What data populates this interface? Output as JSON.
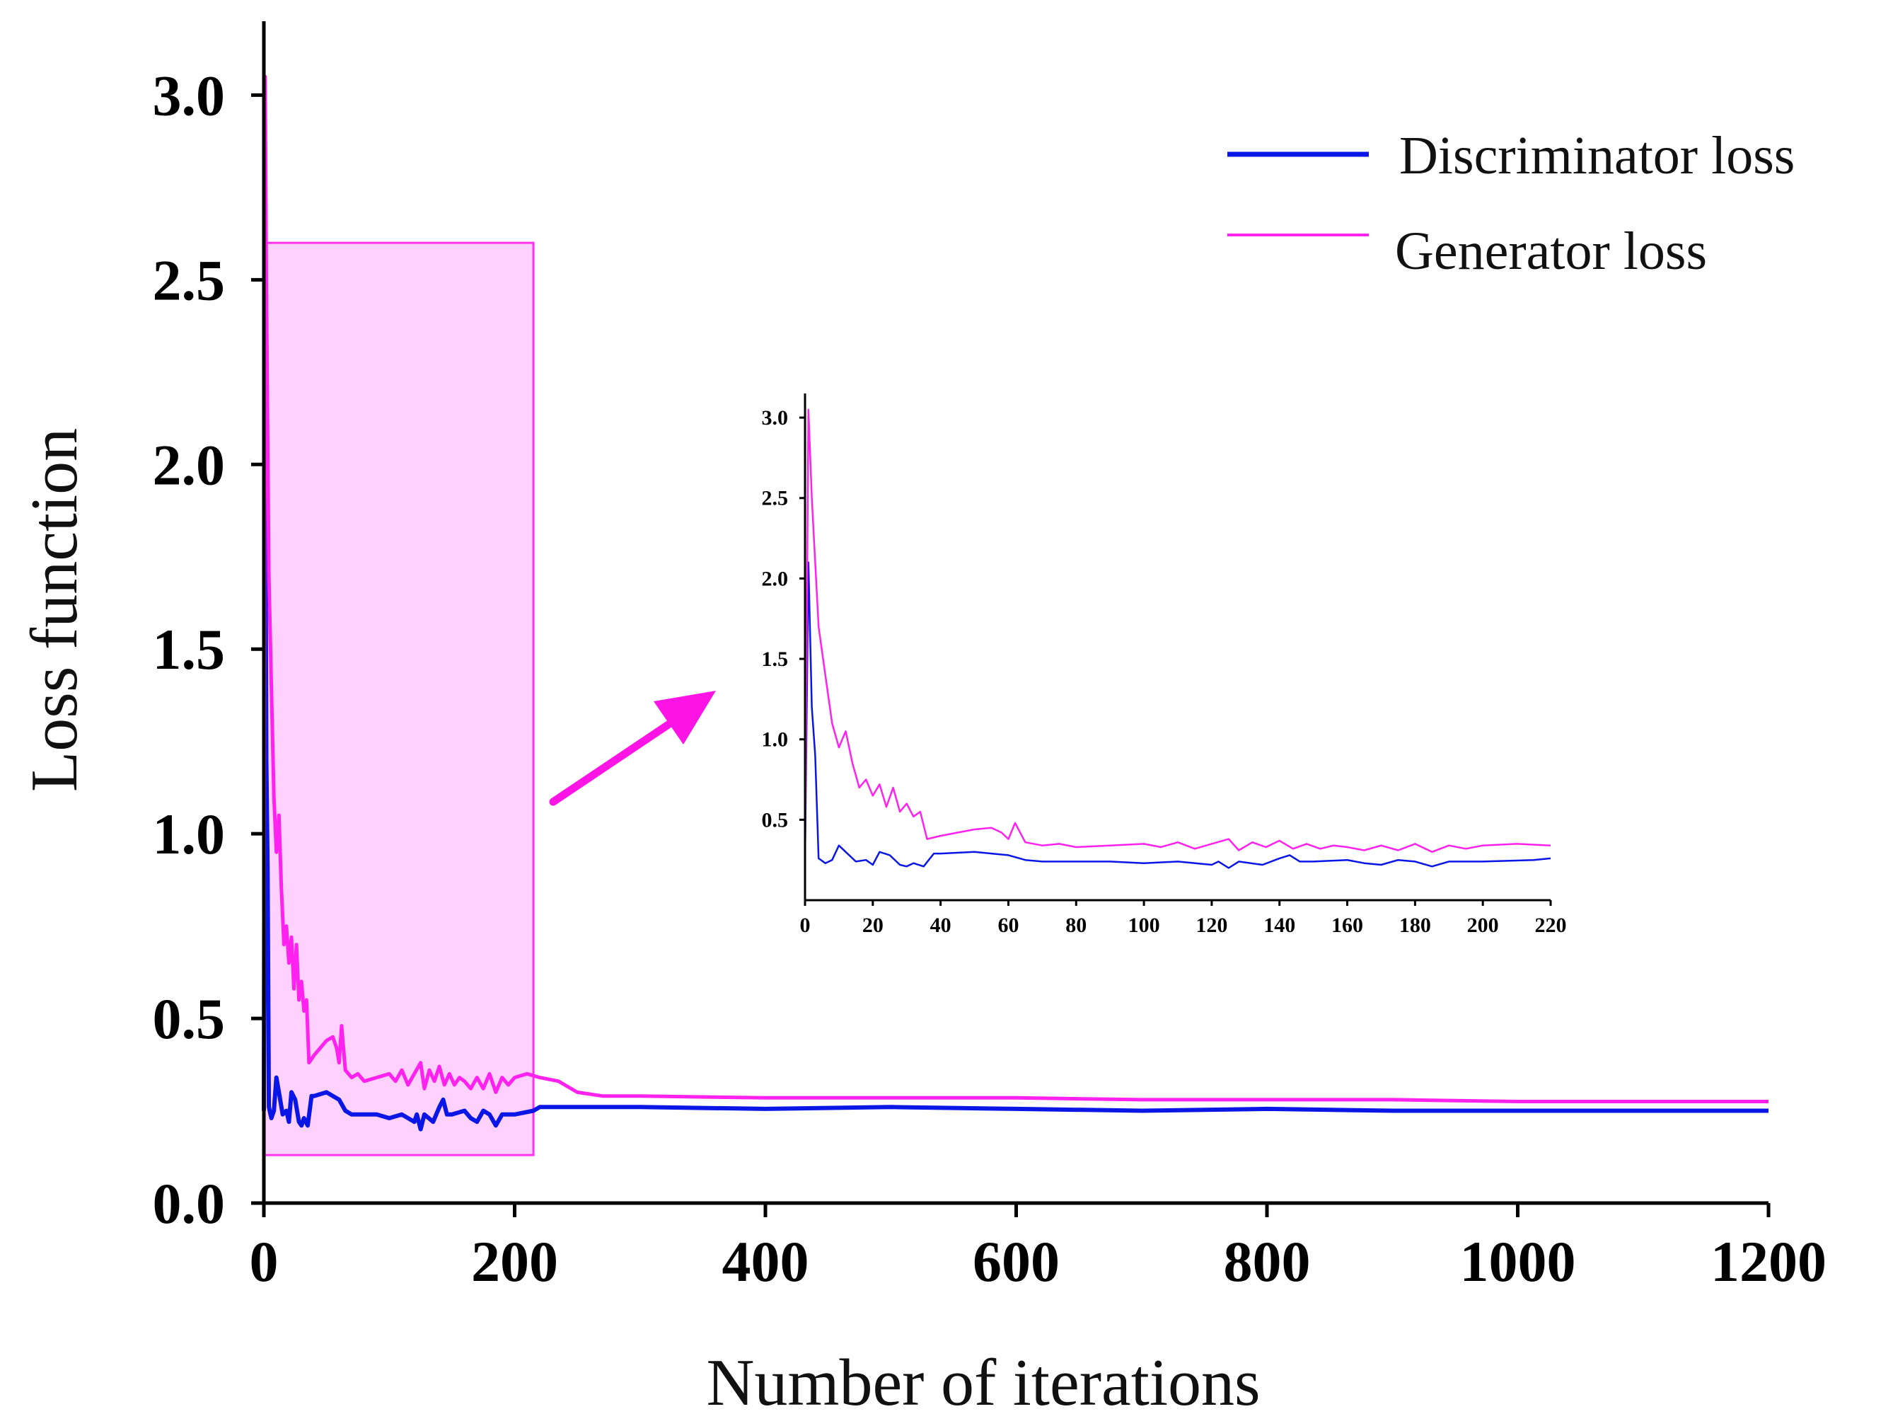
{
  "chart_data": [
    {
      "type": "line",
      "title": "",
      "xlabel": "Number of iterations",
      "ylabel": "Loss function",
      "xlim": [
        0,
        1200
      ],
      "ylim": [
        0,
        3.2
      ],
      "x_ticks": [
        "0",
        "200",
        "400",
        "600",
        "800",
        "1000",
        "1200"
      ],
      "y_ticks": [
        "0.0",
        "0.5",
        "1.0",
        "1.5",
        "2.0",
        "2.5",
        "3.0"
      ],
      "legend_position": "top-right",
      "highlight_region": {
        "x": [
          0,
          215
        ],
        "y": [
          0.13,
          2.6
        ],
        "color": "#ff66ff"
      },
      "series": [
        {
          "name": "Discriminator loss",
          "color": "#0a16e6",
          "points": [
            [
              0,
              0.25
            ],
            [
              1,
              2.1
            ],
            [
              2,
              1.2
            ],
            [
              3,
              0.9
            ],
            [
              4,
              0.26
            ],
            [
              6,
              0.23
            ],
            [
              8,
              0.25
            ],
            [
              10,
              0.34
            ],
            [
              12,
              0.3
            ],
            [
              15,
              0.24
            ],
            [
              18,
              0.25
            ],
            [
              20,
              0.22
            ],
            [
              22,
              0.3
            ],
            [
              25,
              0.28
            ],
            [
              28,
              0.22
            ],
            [
              30,
              0.21
            ],
            [
              32,
              0.23
            ],
            [
              35,
              0.21
            ],
            [
              38,
              0.29
            ],
            [
              40,
              0.29
            ],
            [
              50,
              0.3
            ],
            [
              55,
              0.29
            ],
            [
              60,
              0.28
            ],
            [
              65,
              0.25
            ],
            [
              70,
              0.24
            ],
            [
              80,
              0.24
            ],
            [
              90,
              0.24
            ],
            [
              100,
              0.23
            ],
            [
              110,
              0.24
            ],
            [
              120,
              0.22
            ],
            [
              122,
              0.24
            ],
            [
              125,
              0.2
            ],
            [
              128,
              0.24
            ],
            [
              135,
              0.22
            ],
            [
              140,
              0.26
            ],
            [
              143,
              0.28
            ],
            [
              146,
              0.24
            ],
            [
              150,
              0.24
            ],
            [
              160,
              0.25
            ],
            [
              165,
              0.23
            ],
            [
              170,
              0.22
            ],
            [
              175,
              0.25
            ],
            [
              180,
              0.24
            ],
            [
              185,
              0.21
            ],
            [
              190,
              0.24
            ],
            [
              200,
              0.24
            ],
            [
              215,
              0.25
            ],
            [
              220,
              0.26
            ],
            [
              250,
              0.26
            ],
            [
              300,
              0.26
            ],
            [
              400,
              0.255
            ],
            [
              500,
              0.26
            ],
            [
              600,
              0.255
            ],
            [
              700,
              0.25
            ],
            [
              800,
              0.255
            ],
            [
              900,
              0.25
            ],
            [
              1000,
              0.25
            ],
            [
              1100,
              0.25
            ],
            [
              1200,
              0.25
            ]
          ]
        },
        {
          "name": "Generator loss",
          "color": "#ff22ee",
          "points": [
            [
              0,
              0.25
            ],
            [
              1,
              3.05
            ],
            [
              2,
              2.5
            ],
            [
              3,
              2.1
            ],
            [
              4,
              1.7
            ],
            [
              6,
              1.4
            ],
            [
              8,
              1.1
            ],
            [
              10,
              0.95
            ],
            [
              12,
              1.05
            ],
            [
              14,
              0.85
            ],
            [
              16,
              0.7
            ],
            [
              18,
              0.75
            ],
            [
              20,
              0.65
            ],
            [
              22,
              0.72
            ],
            [
              24,
              0.58
            ],
            [
              26,
              0.7
            ],
            [
              28,
              0.55
            ],
            [
              30,
              0.6
            ],
            [
              32,
              0.52
            ],
            [
              34,
              0.55
            ],
            [
              36,
              0.38
            ],
            [
              40,
              0.4
            ],
            [
              45,
              0.42
            ],
            [
              50,
              0.44
            ],
            [
              55,
              0.45
            ],
            [
              58,
              0.42
            ],
            [
              60,
              0.38
            ],
            [
              62,
              0.48
            ],
            [
              65,
              0.36
            ],
            [
              70,
              0.34
            ],
            [
              75,
              0.35
            ],
            [
              80,
              0.33
            ],
            [
              90,
              0.34
            ],
            [
              100,
              0.35
            ],
            [
              105,
              0.33
            ],
            [
              110,
              0.36
            ],
            [
              115,
              0.32
            ],
            [
              120,
              0.35
            ],
            [
              125,
              0.38
            ],
            [
              128,
              0.31
            ],
            [
              132,
              0.36
            ],
            [
              136,
              0.33
            ],
            [
              140,
              0.37
            ],
            [
              144,
              0.32
            ],
            [
              148,
              0.35
            ],
            [
              152,
              0.32
            ],
            [
              156,
              0.34
            ],
            [
              160,
              0.33
            ],
            [
              165,
              0.31
            ],
            [
              170,
              0.34
            ],
            [
              175,
              0.31
            ],
            [
              180,
              0.35
            ],
            [
              185,
              0.3
            ],
            [
              190,
              0.34
            ],
            [
              195,
              0.32
            ],
            [
              200,
              0.34
            ],
            [
              210,
              0.35
            ],
            [
              220,
              0.34
            ],
            [
              235,
              0.33
            ],
            [
              250,
              0.3
            ],
            [
              270,
              0.29
            ],
            [
              300,
              0.29
            ],
            [
              400,
              0.285
            ],
            [
              500,
              0.285
            ],
            [
              600,
              0.285
            ],
            [
              700,
              0.28
            ],
            [
              800,
              0.28
            ],
            [
              900,
              0.28
            ],
            [
              1000,
              0.275
            ],
            [
              1100,
              0.275
            ],
            [
              1200,
              0.275
            ]
          ]
        }
      ]
    },
    {
      "type": "line",
      "title": "",
      "note": "zoomed inset of iterations 0-220",
      "xlim": [
        0,
        220
      ],
      "ylim": [
        0,
        3.15
      ],
      "x_ticks": [
        "0",
        "20",
        "40",
        "60",
        "80",
        "100",
        "120",
        "140",
        "160",
        "180",
        "200",
        "220"
      ],
      "y_ticks": [
        "0.5",
        "1.0",
        "1.5",
        "2.0",
        "2.5",
        "3.0"
      ],
      "series_from": "same series as main chart, restricted to x <= 220"
    }
  ]
}
